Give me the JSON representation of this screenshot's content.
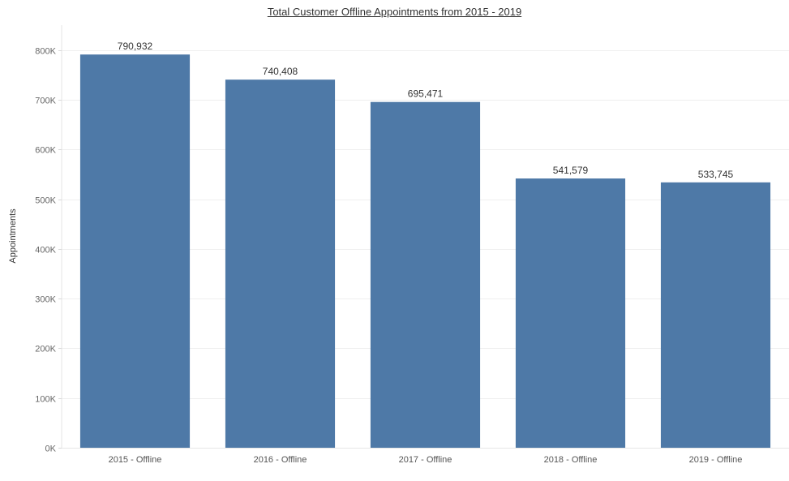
{
  "chart_data": {
    "type": "bar",
    "title": "Total Customer Offline Appointments from 2015 - 2019",
    "xlabel": "",
    "ylabel": "Appointments",
    "categories": [
      "2015 - Offline",
      "2016 - Offline",
      "2017 - Offline",
      "2018 - Offline",
      "2019 - Offline"
    ],
    "values": [
      790932,
      740408,
      695471,
      541579,
      533745
    ],
    "value_labels": [
      "790,932",
      "740,408",
      "695,471",
      "541,579",
      "533,745"
    ],
    "ylim": [
      0,
      850000
    ],
    "yticks": [
      0,
      100000,
      200000,
      300000,
      400000,
      500000,
      600000,
      700000,
      800000
    ],
    "ytick_labels": [
      "0K",
      "100K",
      "200K",
      "300K",
      "400K",
      "500K",
      "600K",
      "700K",
      "800K"
    ],
    "grid": true,
    "bar_color": "#4e79a7"
  }
}
